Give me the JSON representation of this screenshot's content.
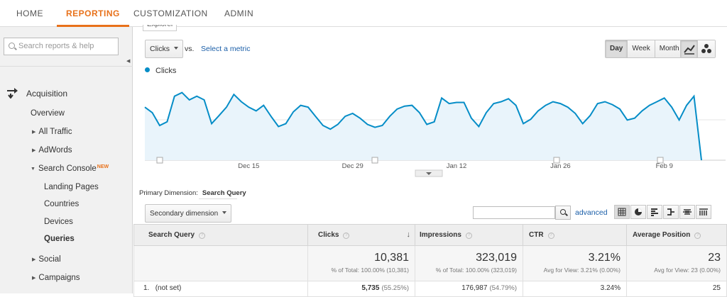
{
  "topnav": [
    {
      "label": "HOME"
    },
    {
      "label": "REPORTING"
    },
    {
      "label": "CUSTOMIZATION"
    },
    {
      "label": "ADMIN"
    }
  ],
  "sidebar": {
    "search_placeholder": "Search reports & help",
    "acquisition_label": "Acquisition",
    "items": [
      {
        "label": "Overview"
      },
      {
        "label": "All Traffic"
      },
      {
        "label": "AdWords"
      },
      {
        "label": "Search Console"
      },
      {
        "label": "Landing Pages"
      },
      {
        "label": "Countries"
      },
      {
        "label": "Devices"
      },
      {
        "label": "Queries"
      },
      {
        "label": "Social"
      },
      {
        "label": "Campaigns"
      }
    ],
    "new_badge": "NEW"
  },
  "explorer": {
    "tab_label": "Explorer",
    "metric_select": "Clicks",
    "vs_label": "vs.",
    "select_metric_label": "Select a metric",
    "period_buttons": [
      "Day",
      "Week",
      "Month"
    ],
    "active_period": "Day"
  },
  "chart_data": {
    "type": "area",
    "series": [
      {
        "name": "Clicks",
        "color": "#058dc7",
        "values": [
          145,
          130,
          95,
          105,
          175,
          185,
          165,
          175,
          165,
          100,
          122,
          145,
          180,
          160,
          145,
          135,
          150,
          120,
          92,
          100,
          132,
          150,
          145,
          120,
          95,
          85,
          98,
          120,
          128,
          115,
          98,
          90,
          95,
          120,
          140,
          148,
          150,
          130,
          98,
          105,
          170,
          155,
          158,
          158,
          115,
          92,
          130,
          155,
          160,
          168,
          150,
          100,
          112,
          135,
          150,
          160,
          155,
          145,
          128,
          100,
          122,
          155,
          160,
          152,
          140,
          110,
          115,
          135,
          150,
          160,
          170,
          145,
          110,
          150,
          175,
          0
        ]
      }
    ],
    "x_tick_labels": [
      "Dec 15",
      "Dec 29",
      "Jan 12",
      "Jan 26",
      "Feb 9"
    ],
    "legend_position": "top-left",
    "grid": true
  },
  "table_controls": {
    "primary_dimension_label": "Primary Dimension:",
    "primary_dimension_value": "Search Query",
    "secondary_dimension_label": "Secondary dimension",
    "advanced_label": "advanced"
  },
  "table": {
    "headers": [
      "Search Query",
      "Clicks",
      "Impressions",
      "CTR",
      "Average Position"
    ],
    "totals": [
      {
        "big": "",
        "sub": ""
      },
      {
        "big": "10,381",
        "sub": "% of Total: 100.00% (10,381)"
      },
      {
        "big": "323,019",
        "sub": "% of Total: 100.00% (323,019)"
      },
      {
        "big": "3.21%",
        "sub": "Avg for View: 3.21% (0.00%)"
      },
      {
        "big": "23",
        "sub": "Avg for View: 23 (0.00%)"
      }
    ],
    "rows": [
      {
        "index": "1.",
        "query": "(not set)",
        "clicks": "5,735",
        "clicks_pct": "(55.25%)",
        "impressions": "176,987",
        "impressions_pct": "(54.79%)",
        "ctr": "3.24%",
        "position": "25"
      }
    ]
  }
}
